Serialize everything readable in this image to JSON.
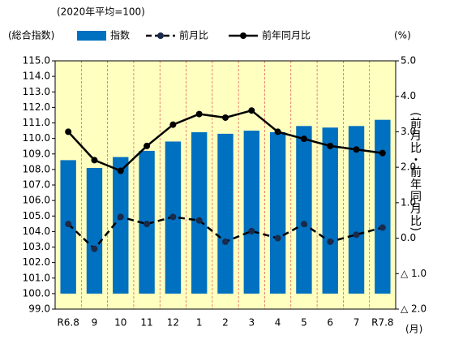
{
  "chart_data": {
    "type": "bar_line",
    "subtitle": "(2020年平均=100)",
    "legend_title": "(総合指数)",
    "y2_unit": "(%)",
    "y2_label": "(前月比・前年同月比)",
    "x_unit": "(月)",
    "categories": [
      "R6.8",
      "9",
      "10",
      "11",
      "12",
      "1",
      "2",
      "3",
      "4",
      "5",
      "6",
      "7",
      "R7.8"
    ],
    "series": [
      {
        "name": "指数",
        "type": "bar",
        "color": "#0070c0",
        "axis": "y",
        "values": [
          108.6,
          108.1,
          108.8,
          109.2,
          109.8,
          110.4,
          110.3,
          110.5,
          110.4,
          110.8,
          110.7,
          110.8,
          111.2
        ]
      },
      {
        "name": "前月比",
        "type": "line",
        "dashed": true,
        "color": "#000000",
        "axis": "y2",
        "values": [
          0.4,
          -0.3,
          0.6,
          0.4,
          0.6,
          0.5,
          -0.1,
          0.2,
          0.0,
          0.4,
          -0.1,
          0.1,
          0.3
        ]
      },
      {
        "name": "前年同月比",
        "type": "line",
        "dashed": false,
        "color": "#000000",
        "axis": "y2",
        "values": [
          3.0,
          2.2,
          1.9,
          2.6,
          3.2,
          3.5,
          3.4,
          3.6,
          3.0,
          2.8,
          2.6,
          2.5,
          2.4
        ]
      }
    ],
    "ylim": [
      99,
      115
    ],
    "yticks": [
      {
        "value": 99,
        "label": "99.0"
      },
      {
        "value": 100,
        "label": "100.0"
      },
      {
        "value": 101,
        "label": "101.0"
      },
      {
        "value": 102,
        "label": "102.0"
      },
      {
        "value": 103,
        "label": "103.0"
      },
      {
        "value": 104,
        "label": "104.0"
      },
      {
        "value": 105,
        "label": "105.0"
      },
      {
        "value": 106,
        "label": "106.0"
      },
      {
        "value": 107,
        "label": "107.0"
      },
      {
        "value": 108,
        "label": "108.0"
      },
      {
        "value": 109,
        "label": "109.0"
      },
      {
        "value": 110,
        "label": "110.0"
      },
      {
        "value": 111,
        "label": "111.0"
      },
      {
        "value": 112,
        "label": "112.0"
      },
      {
        "value": 113,
        "label": "113.0"
      },
      {
        "value": 114,
        "label": "114.0"
      },
      {
        "value": 115,
        "label": "115.0"
      }
    ],
    "y2lim": [
      -2,
      5
    ],
    "y2ticks": [
      {
        "value": -2,
        "label": "△ 2.0"
      },
      {
        "value": -1,
        "label": "△ 1.0"
      },
      {
        "value": 0,
        "label": "0.0"
      },
      {
        "value": 1,
        "label": "1.0"
      },
      {
        "value": 2,
        "label": "2.0"
      },
      {
        "value": 3,
        "label": "3.0"
      },
      {
        "value": 4,
        "label": "4.0"
      },
      {
        "value": 5,
        "label": "5.0"
      }
    ],
    "plot_background": "#ffffc0",
    "grid_color": "#e05050"
  }
}
